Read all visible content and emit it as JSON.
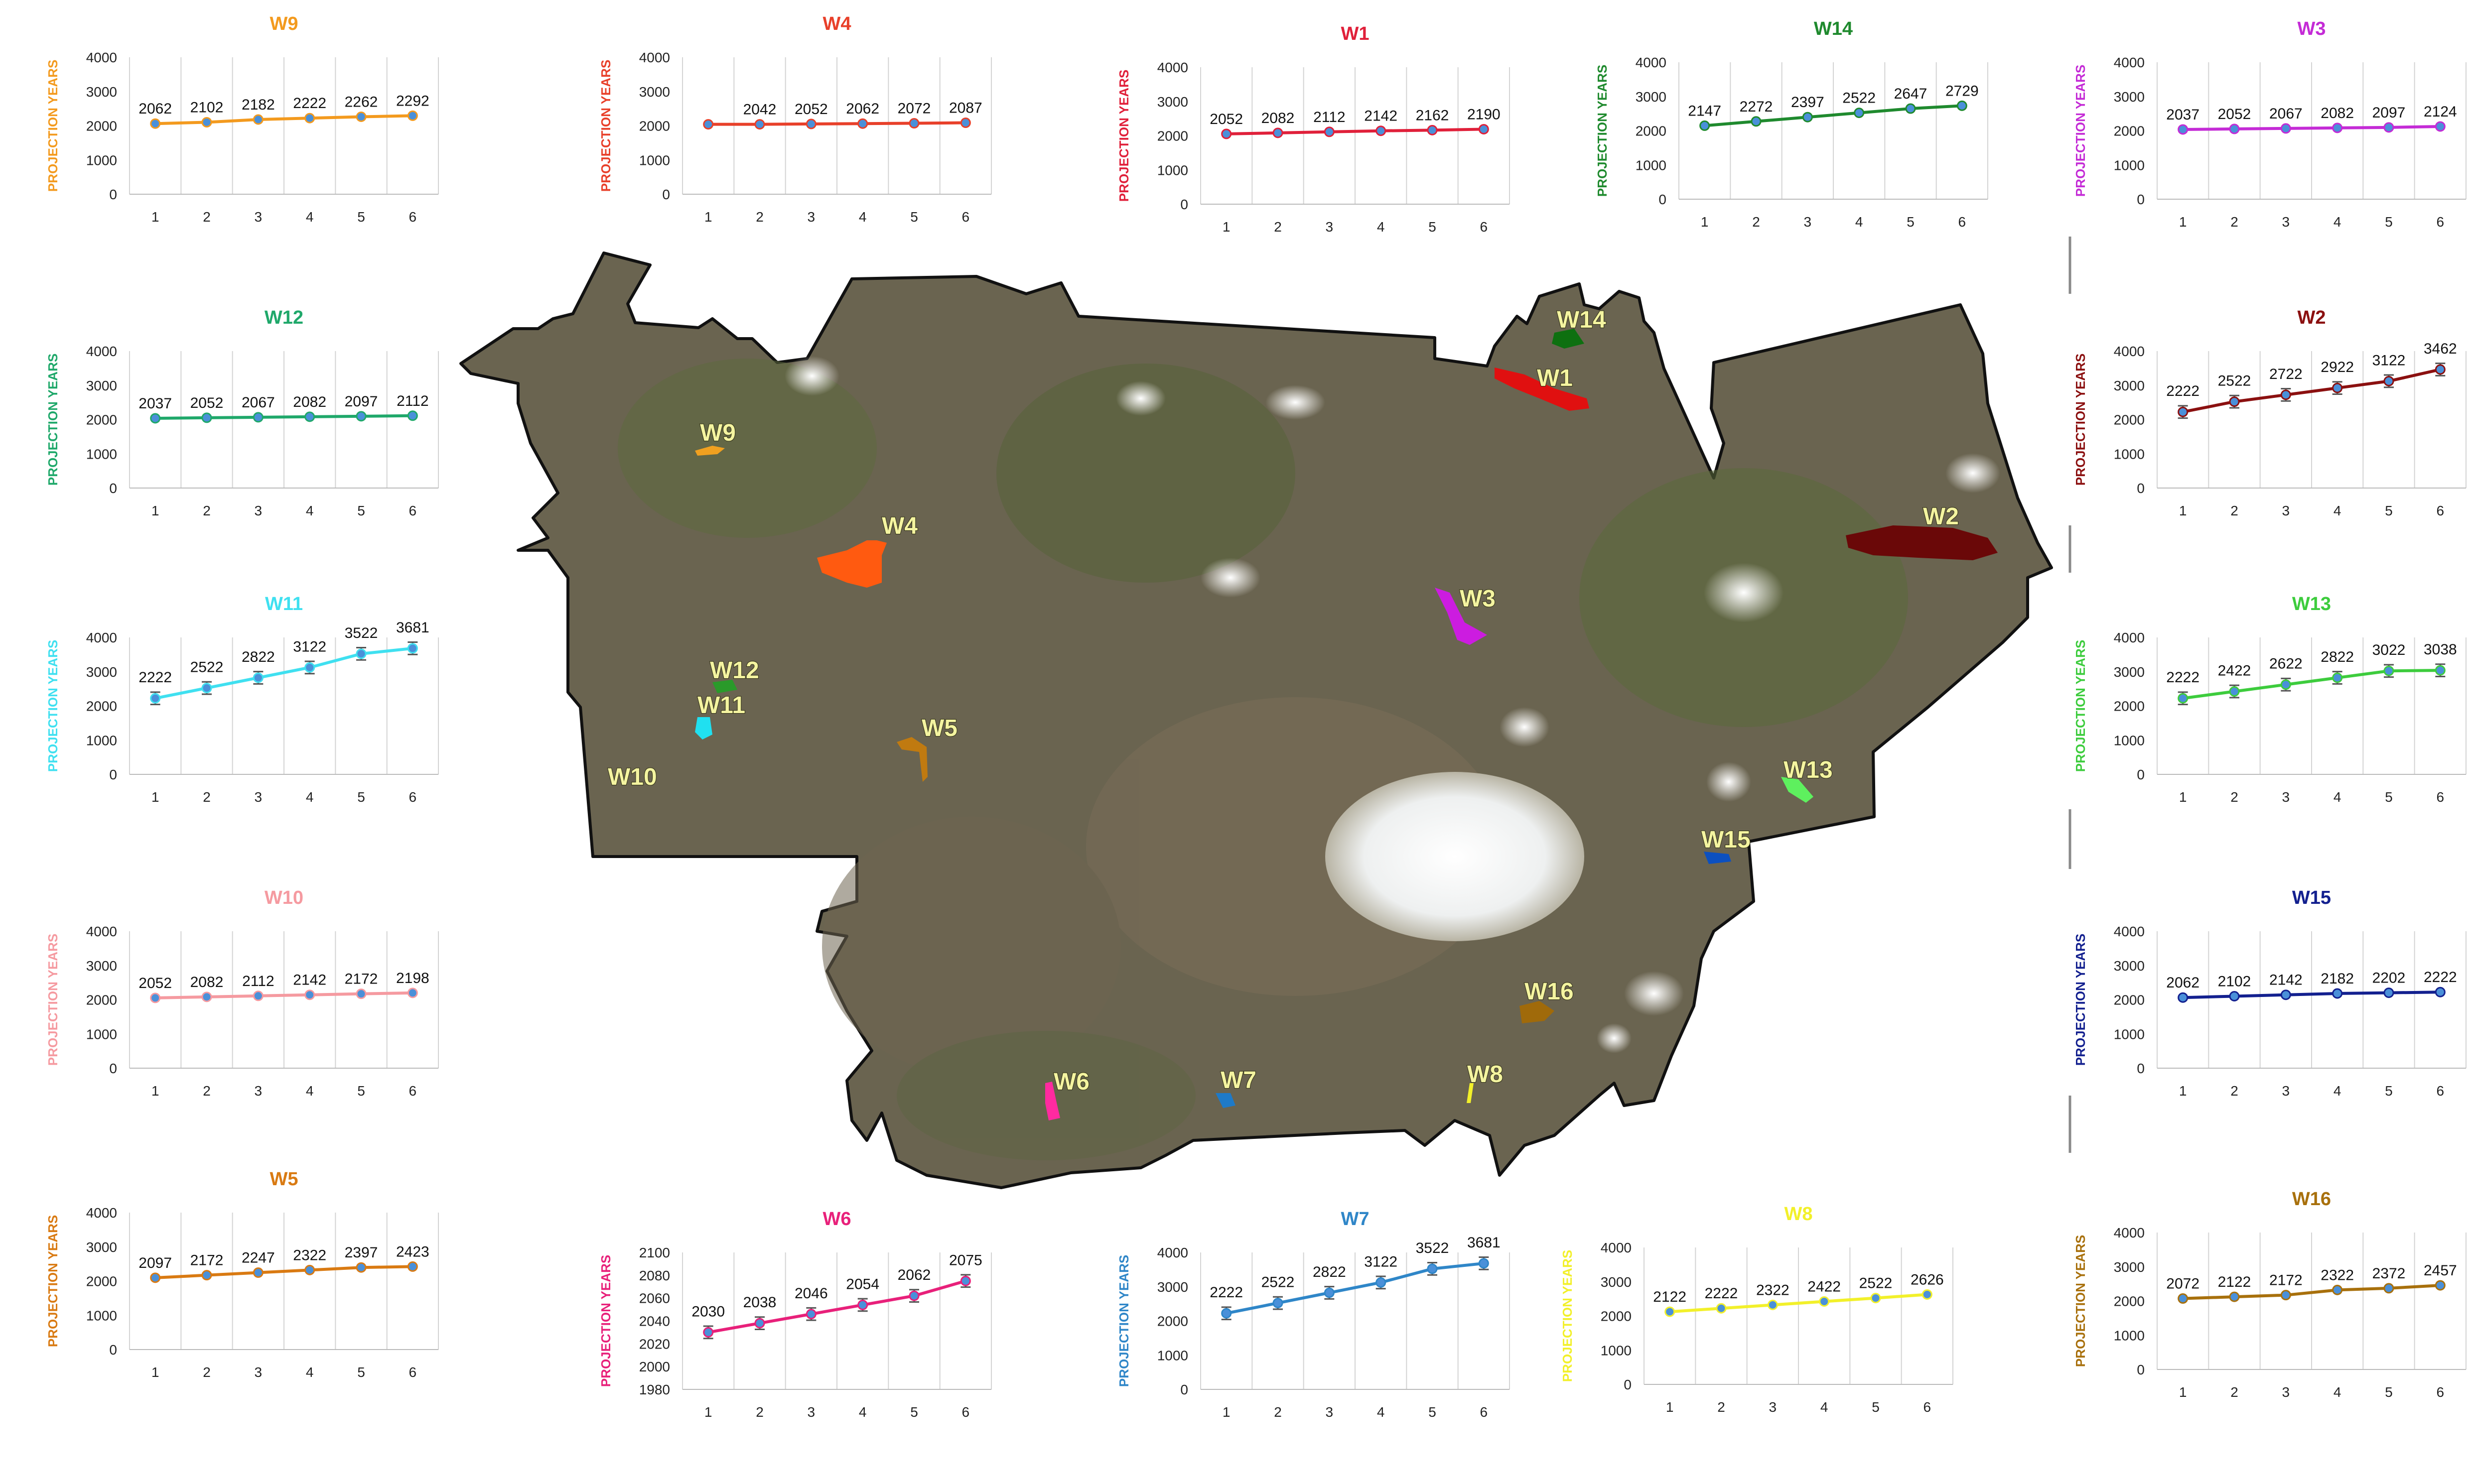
{
  "map": {
    "labels": [
      "W1",
      "W2",
      "W3",
      "W4",
      "W5",
      "W6",
      "W7",
      "W8",
      "W9",
      "W10",
      "W11",
      "W12",
      "W13",
      "W14",
      "W15",
      "W16"
    ]
  },
  "chart_data": [
    {
      "id": "W9",
      "type": "line",
      "title": "W9",
      "ylabel": "PROJECTION YEARS",
      "categories": [
        "1",
        "2",
        "3",
        "4",
        "5",
        "6"
      ],
      "ylim": [
        0,
        4000
      ],
      "yticks": [
        "0",
        "1000",
        "2000",
        "3000",
        "4000"
      ],
      "series": [
        {
          "values": [
            2062,
            2102,
            2182,
            2222,
            2262,
            2292
          ]
        }
      ],
      "data_labels": [
        "2062",
        "2102",
        "2182",
        "2222",
        "2262",
        "2292"
      ],
      "color": "#f39a1e",
      "error_bars": false
    },
    {
      "id": "W4",
      "type": "line",
      "title": "W4",
      "ylabel": "PROJECTION YEARS",
      "categories": [
        "1",
        "2",
        "3",
        "4",
        "5",
        "6"
      ],
      "ylim": [
        0,
        4000
      ],
      "yticks": [
        "0",
        "1000",
        "2000",
        "3000",
        "4000"
      ],
      "series": [
        {
          "values": [
            2042,
            2042,
            2052,
            2062,
            2072,
            2087
          ]
        }
      ],
      "data_labels": [
        "",
        "2042",
        "2052",
        "2062",
        "2072",
        "2087"
      ],
      "color": "#e8402a",
      "error_bars": false
    },
    {
      "id": "W1",
      "type": "line",
      "title": "W1",
      "ylabel": "PROJECTION YEARS",
      "categories": [
        "1",
        "2",
        "3",
        "4",
        "5",
        "6"
      ],
      "ylim": [
        0,
        4000
      ],
      "yticks": [
        "0",
        "1000",
        "2000",
        "3000",
        "4000"
      ],
      "series": [
        {
          "values": [
            2052,
            2082,
            2112,
            2142,
            2162,
            2190
          ]
        }
      ],
      "data_labels": [
        "2052",
        "2082",
        "2112",
        "2142",
        "2162",
        "2190"
      ],
      "color": "#e0203a",
      "error_bars": false
    },
    {
      "id": "W14",
      "type": "line",
      "title": "W14",
      "ylabel": "PROJECTION YEARS",
      "categories": [
        "1",
        "2",
        "3",
        "4",
        "5",
        "6"
      ],
      "ylim": [
        0,
        4000
      ],
      "yticks": [
        "0",
        "1000",
        "2000",
        "3000",
        "4000"
      ],
      "series": [
        {
          "values": [
            2147,
            2272,
            2397,
            2522,
            2647,
            2729
          ]
        }
      ],
      "data_labels": [
        "2147",
        "2272",
        "2397",
        "2522",
        "2647",
        "2729"
      ],
      "color": "#1f8a2e",
      "error_bars": false
    },
    {
      "id": "W3",
      "type": "line",
      "title": "W3",
      "ylabel": "PROJECTION YEARS",
      "categories": [
        "1",
        "2",
        "3",
        "4",
        "5",
        "6"
      ],
      "ylim": [
        0,
        4000
      ],
      "yticks": [
        "0",
        "1000",
        "2000",
        "3000",
        "4000"
      ],
      "series": [
        {
          "values": [
            2037,
            2052,
            2067,
            2082,
            2097,
            2124
          ]
        }
      ],
      "data_labels": [
        "2037",
        "2052",
        "2067",
        "2082",
        "2097",
        "2124"
      ],
      "color": "#c42bd6",
      "error_bars": false
    },
    {
      "id": "W12",
      "type": "line",
      "title": "W12",
      "ylabel": "PROJECTION YEARS",
      "categories": [
        "1",
        "2",
        "3",
        "4",
        "5",
        "6"
      ],
      "ylim": [
        0,
        4000
      ],
      "yticks": [
        "0",
        "1000",
        "2000",
        "3000",
        "4000"
      ],
      "series": [
        {
          "values": [
            2037,
            2052,
            2067,
            2082,
            2097,
            2112
          ]
        }
      ],
      "data_labels": [
        "2037",
        "2052",
        "2067",
        "2082",
        "2097",
        "2112"
      ],
      "color": "#1fa86a",
      "error_bars": false
    },
    {
      "id": "W2",
      "type": "line",
      "title": "W2",
      "ylabel": "PROJECTION YEARS",
      "categories": [
        "1",
        "2",
        "3",
        "4",
        "5",
        "6"
      ],
      "ylim": [
        0,
        4000
      ],
      "yticks": [
        "0",
        "1000",
        "2000",
        "3000",
        "4000"
      ],
      "series": [
        {
          "values": [
            2222,
            2522,
            2722,
            2922,
            3122,
            3462
          ]
        }
      ],
      "data_labels": [
        "2222",
        "2522",
        "2722",
        "2922",
        "3122",
        "3462"
      ],
      "color": "#8b1010",
      "error_bars": true
    },
    {
      "id": "W11",
      "type": "line",
      "title": "W11",
      "ylabel": "PROJECTION YEARS",
      "categories": [
        "1",
        "2",
        "3",
        "4",
        "5",
        "6"
      ],
      "ylim": [
        0,
        4000
      ],
      "yticks": [
        "0",
        "1000",
        "2000",
        "3000",
        "4000"
      ],
      "series": [
        {
          "values": [
            2222,
            2522,
            2822,
            3122,
            3522,
            3681
          ]
        }
      ],
      "data_labels": [
        "2222",
        "2522",
        "2822",
        "3122",
        "3522",
        "3681"
      ],
      "color": "#3fe0f0",
      "error_bars": true
    },
    {
      "id": "W13",
      "type": "line",
      "title": "W13",
      "ylabel": "PROJECTION YEARS",
      "categories": [
        "1",
        "2",
        "3",
        "4",
        "5",
        "6"
      ],
      "ylim": [
        0,
        4000
      ],
      "yticks": [
        "0",
        "1000",
        "2000",
        "3000",
        "4000"
      ],
      "series": [
        {
          "values": [
            2222,
            2422,
            2622,
            2822,
            3022,
            3038
          ]
        }
      ],
      "data_labels": [
        "2222",
        "2422",
        "2622",
        "2822",
        "3022",
        "3038"
      ],
      "color": "#3dcc3d",
      "error_bars": true
    },
    {
      "id": "W10",
      "type": "line",
      "title": "W10",
      "ylabel": "PROJECTION YEARS",
      "categories": [
        "1",
        "2",
        "3",
        "4",
        "5",
        "6"
      ],
      "ylim": [
        0,
        4000
      ],
      "yticks": [
        "0",
        "1000",
        "2000",
        "3000",
        "4000"
      ],
      "series": [
        {
          "values": [
            2052,
            2082,
            2112,
            2142,
            2172,
            2198
          ]
        }
      ],
      "data_labels": [
        "2052",
        "2082",
        "2112",
        "2142",
        "2172",
        "2198"
      ],
      "color": "#f59aa0",
      "error_bars": false
    },
    {
      "id": "W15",
      "type": "line",
      "title": "W15",
      "ylabel": "PROJECTION YEARS",
      "categories": [
        "1",
        "2",
        "3",
        "4",
        "5",
        "6"
      ],
      "ylim": [
        0,
        4000
      ],
      "yticks": [
        "0",
        "1000",
        "2000",
        "3000",
        "4000"
      ],
      "series": [
        {
          "values": [
            2062,
            2102,
            2142,
            2182,
            2202,
            2222
          ]
        }
      ],
      "data_labels": [
        "2062",
        "2102",
        "2142",
        "2182",
        "2202",
        "2222"
      ],
      "color": "#13208f",
      "error_bars": false
    },
    {
      "id": "W5",
      "type": "line",
      "title": "W5",
      "ylabel": "PROJECTION YEARS",
      "categories": [
        "1",
        "2",
        "3",
        "4",
        "5",
        "6"
      ],
      "ylim": [
        0,
        4000
      ],
      "yticks": [
        "0",
        "1000",
        "2000",
        "3000",
        "4000"
      ],
      "series": [
        {
          "values": [
            2097,
            2172,
            2247,
            2322,
            2397,
            2423
          ]
        }
      ],
      "data_labels": [
        "2097",
        "2172",
        "2247",
        "2322",
        "2397",
        "2423"
      ],
      "color": "#d97a12",
      "error_bars": false
    },
    {
      "id": "W6",
      "type": "line",
      "title": "W6",
      "ylabel": "PROJECTION YEARS",
      "categories": [
        "1",
        "2",
        "3",
        "4",
        "5",
        "6"
      ],
      "ylim": [
        1980,
        2100
      ],
      "yticks": [
        "1980",
        "2000",
        "2020",
        "2040",
        "2060",
        "2080",
        "2100"
      ],
      "series": [
        {
          "values": [
            2030,
            2038,
            2046,
            2054,
            2062,
            2075
          ]
        }
      ],
      "data_labels": [
        "2030",
        "2038",
        "2046",
        "2054",
        "2062",
        "2075"
      ],
      "color": "#e8207a",
      "error_bars": true
    },
    {
      "id": "W7",
      "type": "line",
      "title": "W7",
      "ylabel": "PROJECTION YEARS",
      "categories": [
        "1",
        "2",
        "3",
        "4",
        "5",
        "6"
      ],
      "ylim": [
        0,
        4000
      ],
      "yticks": [
        "0",
        "1000",
        "2000",
        "3000",
        "4000"
      ],
      "series": [
        {
          "values": [
            2222,
            2522,
            2822,
            3122,
            3522,
            3681
          ]
        }
      ],
      "data_labels": [
        "2222",
        "2522",
        "2822",
        "3122",
        "3522",
        "3681"
      ],
      "color": "#2f86c8",
      "error_bars": true
    },
    {
      "id": "W8",
      "type": "line",
      "title": "W8",
      "ylabel": "PROJECTION YEARS",
      "categories": [
        "1",
        "2",
        "3",
        "4",
        "5",
        "6"
      ],
      "ylim": [
        0,
        4000
      ],
      "yticks": [
        "0",
        "1000",
        "2000",
        "3000",
        "4000"
      ],
      "series": [
        {
          "values": [
            2122,
            2222,
            2322,
            2422,
            2522,
            2626
          ]
        }
      ],
      "data_labels": [
        "2122",
        "2222",
        "2322",
        "2422",
        "2522",
        "2626"
      ],
      "color": "#f2f02a",
      "error_bars": false
    },
    {
      "id": "W16",
      "type": "line",
      "title": "W16",
      "ylabel": "PROJECTION YEARS",
      "categories": [
        "1",
        "2",
        "3",
        "4",
        "5",
        "6"
      ],
      "ylim": [
        0,
        4000
      ],
      "yticks": [
        "0",
        "1000",
        "2000",
        "3000",
        "4000"
      ],
      "series": [
        {
          "values": [
            2072,
            2122,
            2172,
            2322,
            2372,
            2457
          ]
        }
      ],
      "data_labels": [
        "2072",
        "2122",
        "2172",
        "2322",
        "2372",
        "2457"
      ],
      "color": "#a8700c",
      "error_bars": false
    }
  ]
}
